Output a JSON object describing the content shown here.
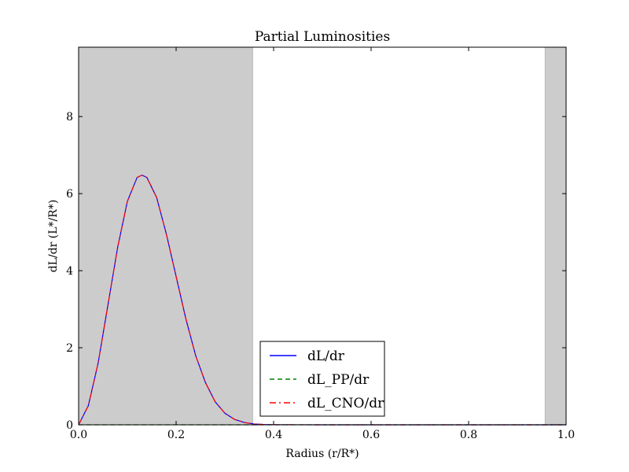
{
  "chart_data": {
    "type": "line",
    "title": "Partial Luminosities",
    "xlabel": "Radius (r/R*)",
    "ylabel": "dL/dr (L*/R*)",
    "xlim": [
      0.0,
      1.0
    ],
    "ylim": [
      0.0,
      9.8
    ],
    "x_ticks": [
      "0.0",
      "0.2",
      "0.4",
      "0.6",
      "0.8",
      "1.0"
    ],
    "y_ticks": [
      "0",
      "2",
      "4",
      "6",
      "8"
    ],
    "shaded_regions": [
      {
        "x_start": 0.0,
        "x_end": 0.357
      },
      {
        "x_start": 0.957,
        "x_end": 1.0
      }
    ],
    "shade_color": "#cccccc",
    "grid": false,
    "legend_position": "bottom-center",
    "series": [
      {
        "name": "dL/dr",
        "color": "#0000ff",
        "style": "solid",
        "x": [
          0.0,
          0.02,
          0.04,
          0.06,
          0.08,
          0.1,
          0.12,
          0.13,
          0.14,
          0.16,
          0.18,
          0.2,
          0.22,
          0.24,
          0.26,
          0.28,
          0.3,
          0.32,
          0.34,
          0.36,
          0.38,
          0.4,
          0.5,
          0.6,
          0.7,
          0.8,
          0.9,
          1.0
        ],
        "values": [
          0.0,
          0.5,
          1.6,
          3.1,
          4.6,
          5.8,
          6.42,
          6.48,
          6.42,
          5.9,
          4.95,
          3.85,
          2.75,
          1.8,
          1.1,
          0.6,
          0.3,
          0.14,
          0.06,
          0.02,
          0.008,
          0.003,
          0.0,
          0.0,
          0.0,
          0.0,
          0.0,
          0.0
        ]
      },
      {
        "name": "dL_PP/dr",
        "color": "#008000",
        "style": "dashed",
        "x": [
          0.0,
          0.2,
          0.4,
          0.6,
          0.8,
          1.0
        ],
        "values": [
          0.0,
          0.0,
          0.0,
          0.0,
          0.0,
          0.0
        ]
      },
      {
        "name": "dL_CNO/dr",
        "color": "#ff0000",
        "style": "dashdot",
        "x": [
          0.0,
          0.02,
          0.04,
          0.06,
          0.08,
          0.1,
          0.12,
          0.13,
          0.14,
          0.16,
          0.18,
          0.2,
          0.22,
          0.24,
          0.26,
          0.28,
          0.3,
          0.32,
          0.34,
          0.36,
          0.38,
          0.4,
          0.5,
          0.6,
          0.7,
          0.8,
          0.9,
          1.0
        ],
        "values": [
          0.0,
          0.5,
          1.6,
          3.1,
          4.6,
          5.8,
          6.42,
          6.48,
          6.42,
          5.9,
          4.95,
          3.85,
          2.75,
          1.8,
          1.1,
          0.6,
          0.3,
          0.14,
          0.06,
          0.02,
          0.008,
          0.003,
          0.0,
          0.0,
          0.0,
          0.0,
          0.0,
          0.0
        ]
      }
    ]
  }
}
